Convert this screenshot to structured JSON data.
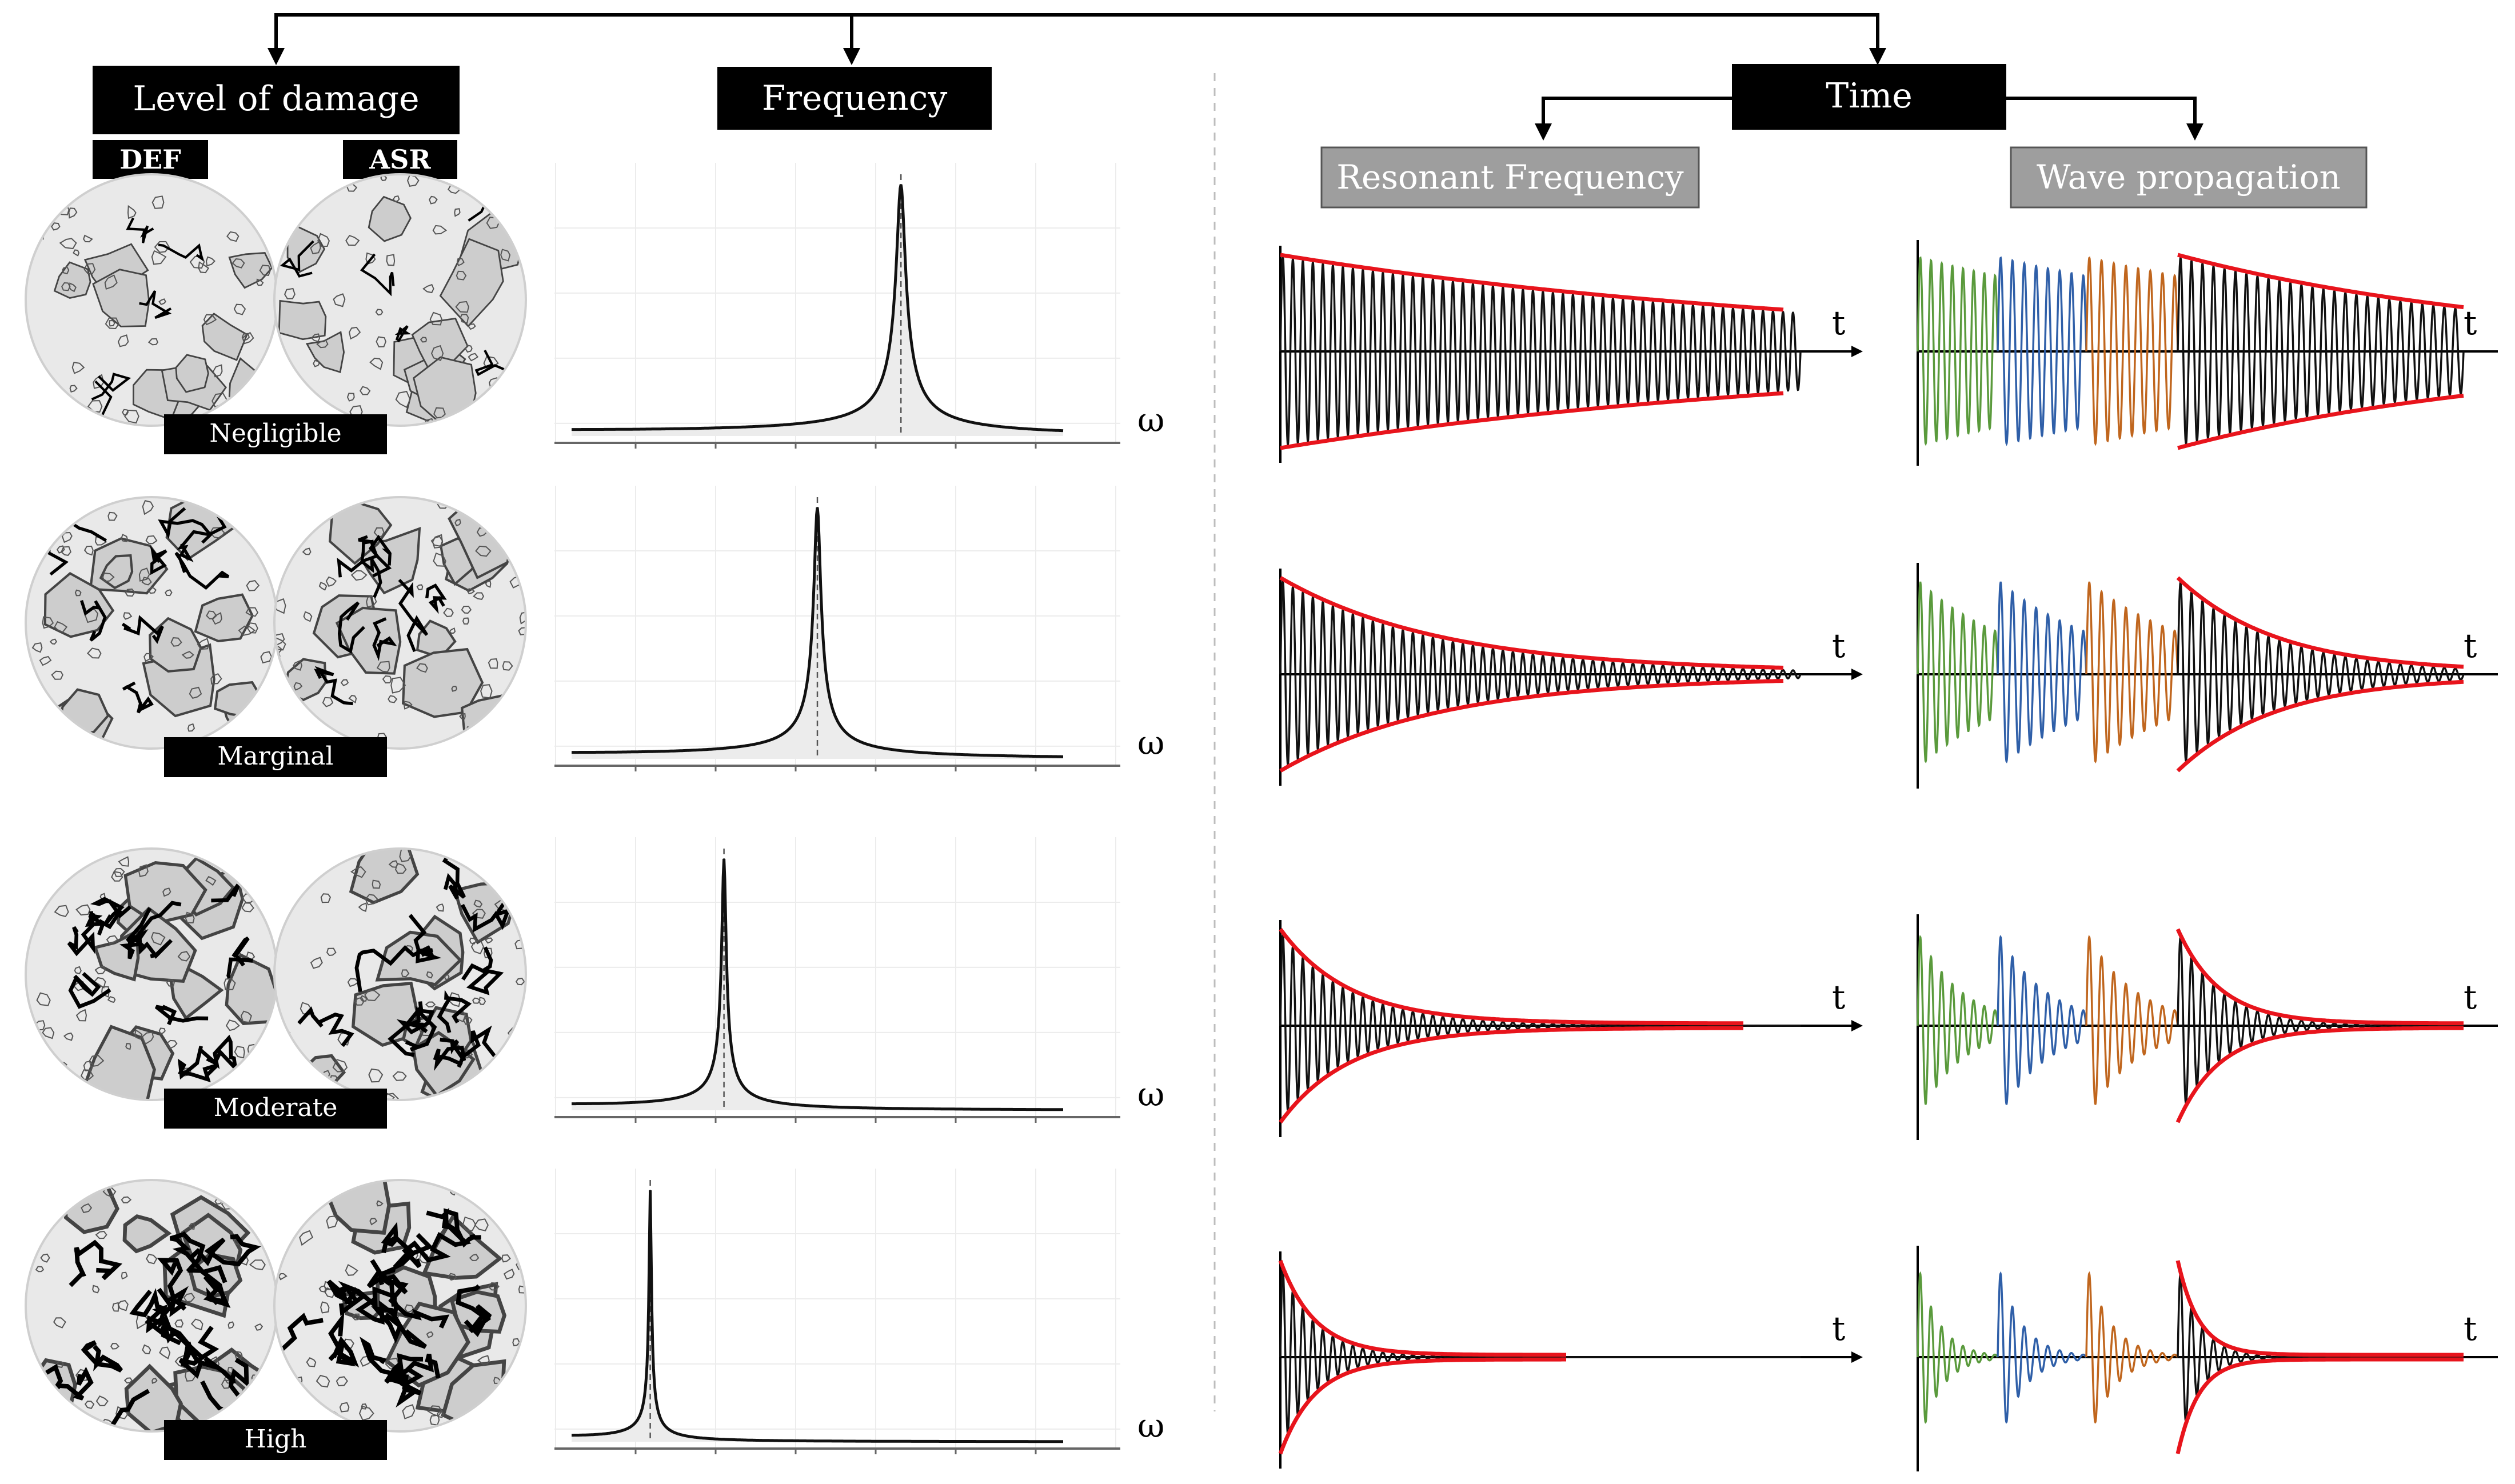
{
  "headers": {
    "damage": "Level of damage",
    "frequency": "Frequency",
    "time": "Time",
    "resonant": "Resonant Frequency",
    "wave": "Wave propagation"
  },
  "sample_labels": {
    "def": "DEF",
    "asr": "ASR"
  },
  "axis_symbols": {
    "omega": "ω",
    "t": "t"
  },
  "levels": [
    {
      "label": "Negligible",
      "peak_fraction": 0.67,
      "decay_rate": 0.9,
      "crack_severity": 1
    },
    {
      "label": "Marginal",
      "peak_fraction": 0.5,
      "decay_rate": 3.2,
      "crack_severity": 2
    },
    {
      "label": "Moderate",
      "peak_fraction": 0.31,
      "decay_rate": 7.5,
      "crack_severity": 3
    },
    {
      "label": "High",
      "peak_fraction": 0.16,
      "decay_rate": 15.0,
      "crack_severity": 4
    }
  ],
  "colors": {
    "label_bg": "#000000",
    "label_text": "#ffffff",
    "sub_header_bg": "#9e9e9e",
    "envelope": "#e8141c",
    "signal": "#111111",
    "wave_green": "#5a9a3c",
    "wave_blue": "#2f5fa8",
    "wave_orange": "#c0661e",
    "aggregate_fill": "#cdcdcd",
    "matrix_fill": "#e9e9e9",
    "peak_fill": "#ececec"
  }
}
